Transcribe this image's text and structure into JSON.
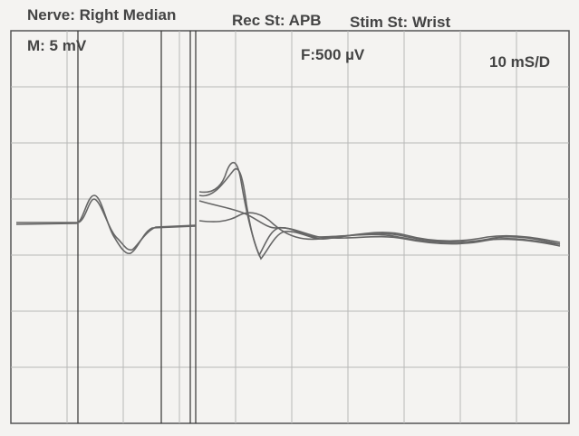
{
  "header": {
    "nerve": "Nerve: Right Median",
    "rec_site": "Rec St: APB",
    "stim_site": "Stim St: Wrist"
  },
  "panel": {
    "m_scale": "M:  5 mV",
    "f_scale": "F:500 µV",
    "time_scale": "10 mS/D"
  }
}
